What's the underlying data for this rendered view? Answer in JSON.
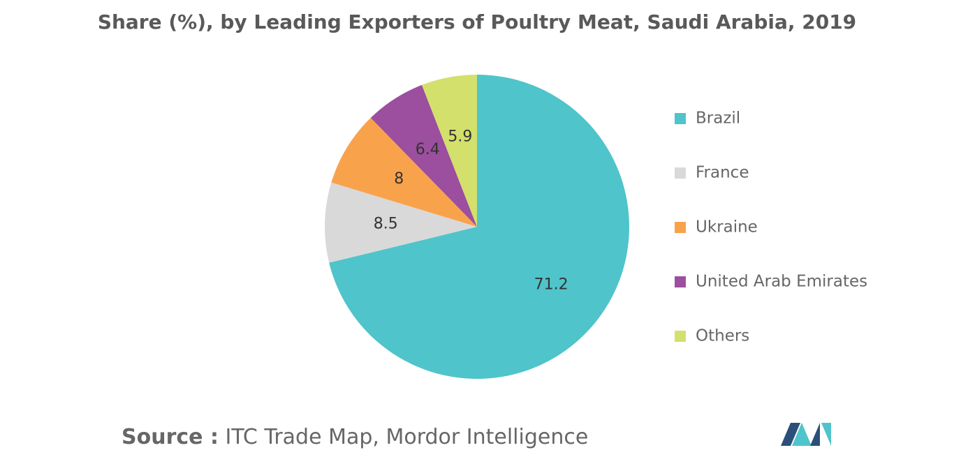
{
  "chart_data": {
    "type": "pie",
    "title": "Share (%), by Leading Exporters of Poultry Meat, Saudi Arabia, 2019",
    "categories": [
      "Brazil",
      "France",
      "Ukraine",
      "United Arab Emirates",
      "Others"
    ],
    "values": [
      71.2,
      8.5,
      8,
      6.4,
      5.9
    ],
    "colors": [
      "#4fc4ca",
      "#d9d9d9",
      "#f9a24c",
      "#9b4f9e",
      "#d3e06b"
    ],
    "legend": "right",
    "source_label": "Source :",
    "source": "ITC Trade Map, Mordor Intelligence"
  }
}
